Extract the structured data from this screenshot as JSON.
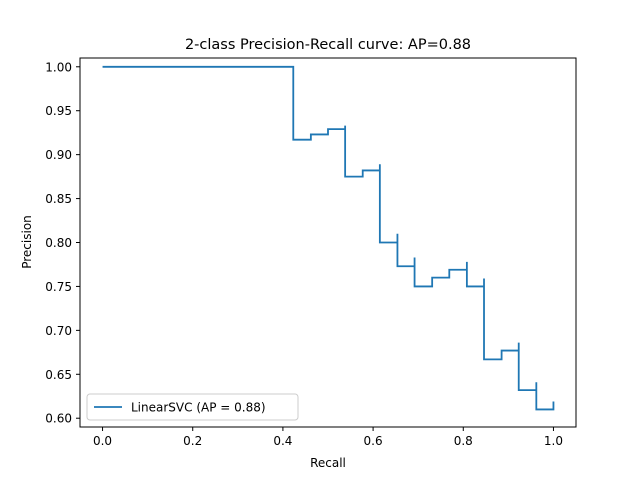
{
  "chart_data": {
    "type": "line",
    "step": "post",
    "title": "2-class Precision-Recall curve: AP=0.88",
    "xlabel": "Recall",
    "ylabel": "Precision",
    "xlim": [
      -0.05,
      1.05
    ],
    "ylim": [
      0.59,
      1.01
    ],
    "xticks": [
      0.0,
      0.2,
      0.4,
      0.6,
      0.8,
      1.0
    ],
    "xtick_labels": [
      "0.0",
      "0.2",
      "0.4",
      "0.6",
      "0.8",
      "1.0"
    ],
    "yticks": [
      0.6,
      0.65,
      0.7,
      0.75,
      0.8,
      0.85,
      0.9,
      0.95,
      1.0
    ],
    "ytick_labels": [
      "0.60",
      "0.65",
      "0.70",
      "0.75",
      "0.80",
      "0.85",
      "0.90",
      "0.95",
      "1.00"
    ],
    "grid": false,
    "legend_position": "lower-left",
    "series": [
      {
        "name": "LinearSVC (AP = 0.88)",
        "color": "#1f77b4",
        "recall": [
          0.0,
          0.423,
          0.423,
          0.462,
          0.5,
          0.538,
          0.538,
          0.577,
          0.615,
          0.615,
          0.654,
          0.654,
          0.692,
          0.692,
          0.731,
          0.769,
          0.808,
          0.808,
          0.846,
          0.846,
          0.885,
          0.923,
          0.923,
          0.962,
          0.962,
          1.0
        ],
        "precision": [
          1.0,
          1.0,
          0.917,
          0.923,
          0.929,
          0.933,
          0.875,
          0.882,
          0.889,
          0.8,
          0.81,
          0.773,
          0.783,
          0.75,
          0.76,
          0.769,
          0.778,
          0.75,
          0.759,
          0.667,
          0.677,
          0.686,
          0.632,
          0.641,
          0.61,
          0.619
        ]
      }
    ]
  }
}
